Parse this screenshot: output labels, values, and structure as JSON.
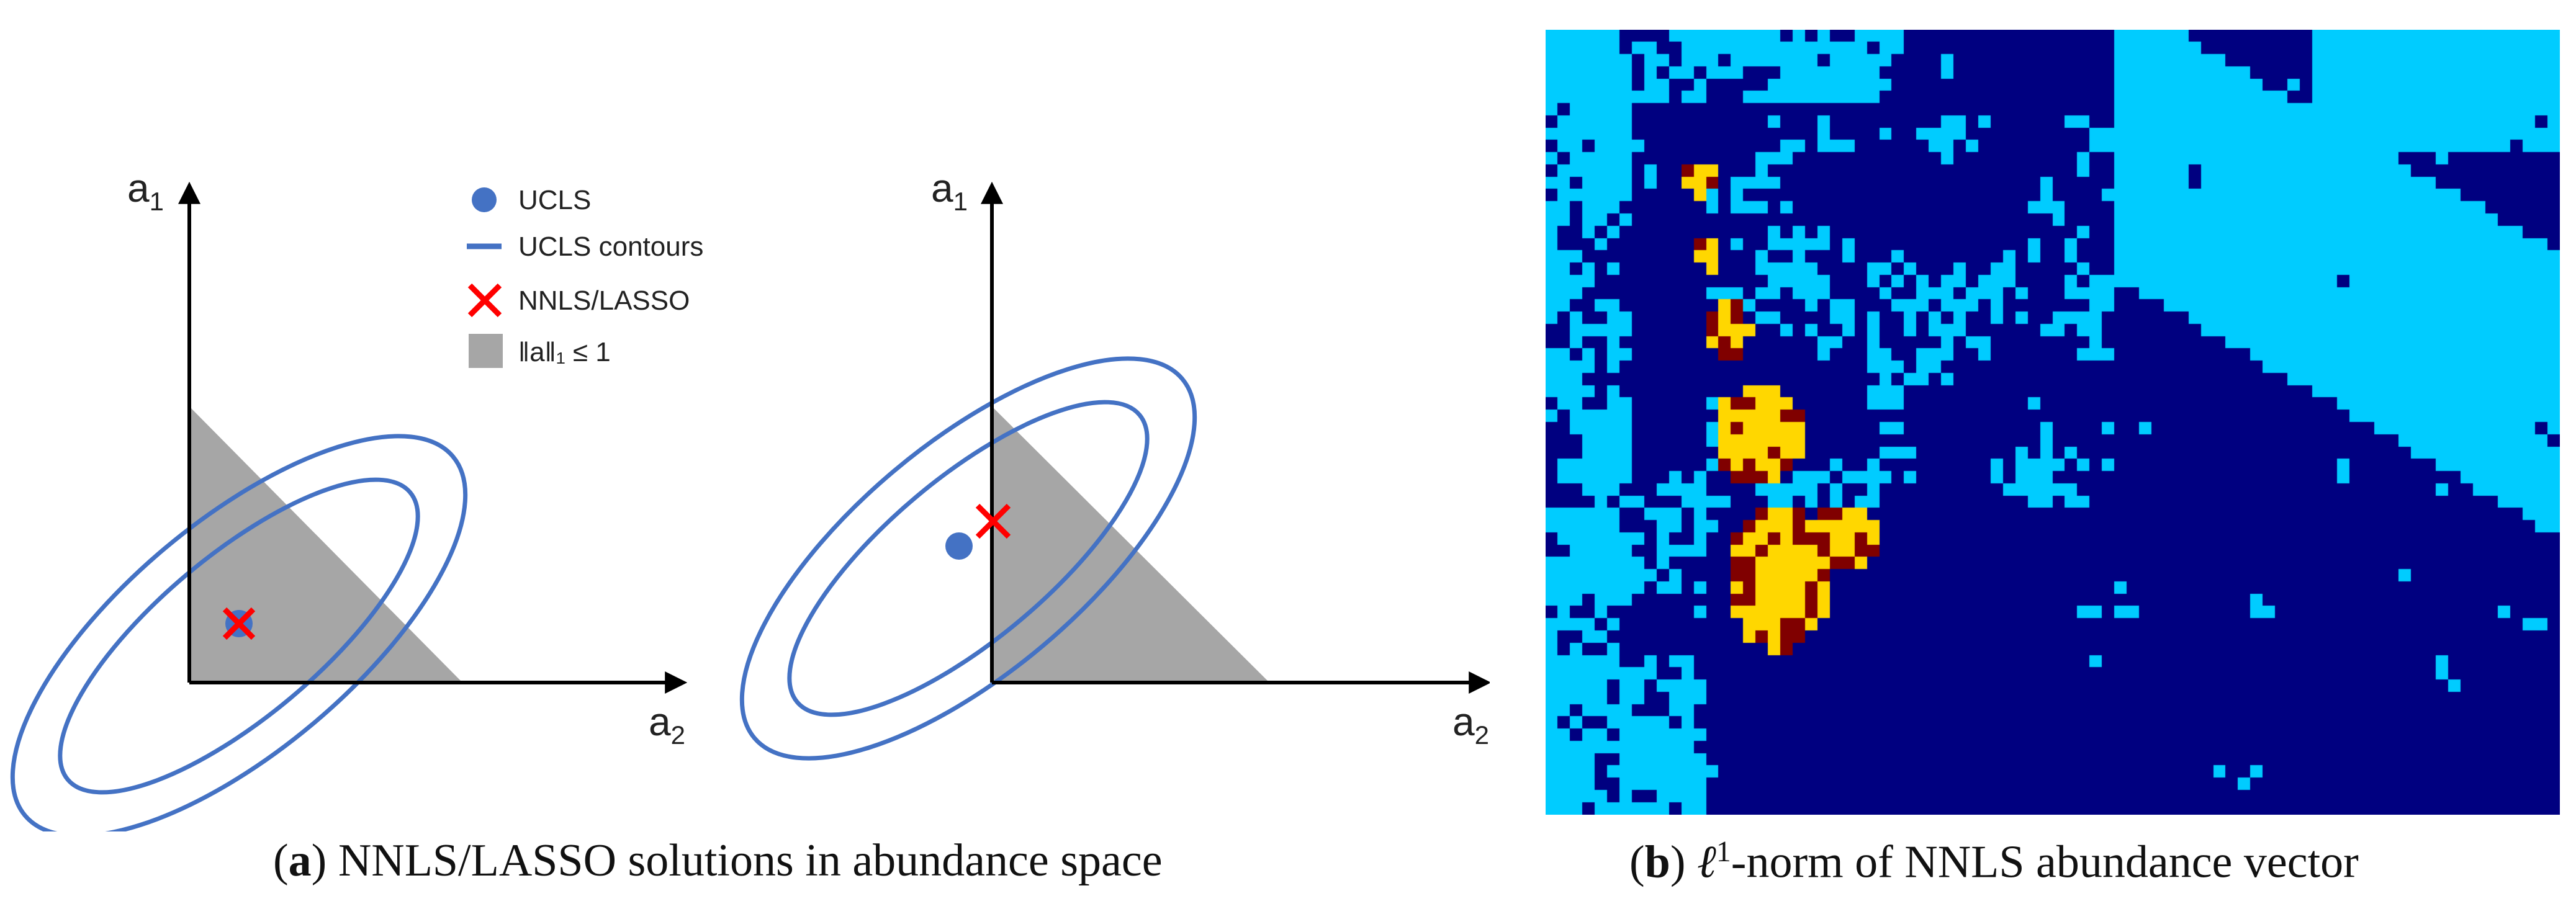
{
  "panel_a": {
    "caption_letter": "a",
    "caption_text": "NNLS/LASSO solutions in abundance space",
    "legend": {
      "items": [
        {
          "label": "UCLS",
          "icon": "blue-dot-icon"
        },
        {
          "label": "UCLS contours",
          "icon": "blue-line-icon"
        },
        {
          "label": "NNLS/LASSO",
          "icon": "red-x-icon"
        },
        {
          "label": "‖a‖₁ ≤ 1",
          "icon": "gray-square-icon"
        }
      ]
    },
    "plots": [
      {
        "y_axis_label": "a",
        "y_axis_sub": "1",
        "x_axis_label": "a",
        "x_axis_sub": "2"
      },
      {
        "y_axis_label": "a",
        "y_axis_sub": "1",
        "x_axis_label": "a",
        "x_axis_sub": "2"
      }
    ]
  },
  "panel_b": {
    "caption_letter": "b",
    "caption_mid": "1",
    "caption_text": "-norm of NNLS abundance vector"
  },
  "colors": {
    "ucls_blue": "#4472c4",
    "nnls_red": "#ff0000",
    "constraint_gray": "#a6a6a6",
    "heat_dark_blue": "#000080",
    "heat_cyan": "#00ccff",
    "heat_yellow": "#ffd700",
    "heat_dark_red": "#800000"
  }
}
